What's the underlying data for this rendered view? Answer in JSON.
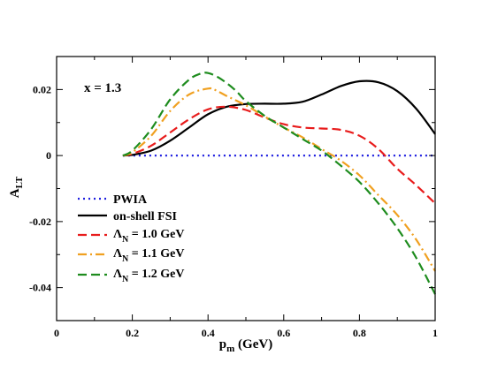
{
  "chart_data": {
    "type": "line",
    "xlabel": "p",
    "xlabel_sub": "m",
    "xlabel_unit": " (GeV)",
    "ylabel": "A",
    "ylabel_sub": "LT",
    "xlim": [
      0,
      1
    ],
    "ylim": [
      -0.05,
      0.03
    ],
    "xticks": [
      0,
      0.2,
      0.4,
      0.6,
      0.8,
      1
    ],
    "xtick_labels": [
      "0",
      "0.2",
      "0.4",
      "0.6",
      "0.8",
      "1"
    ],
    "yticks": [
      -0.04,
      -0.02,
      0,
      0.02
    ],
    "ytick_labels": [
      "-0.04",
      "-0.02",
      "0",
      "0.02"
    ],
    "annotation": "x = 1.3",
    "grid": false,
    "legend_position": "bottom-left",
    "series": [
      {
        "name": "PWIA",
        "label": "PWIA",
        "color": "#1f1fe0",
        "dash": "dotted",
        "x": [
          0.175,
          1.0
        ],
        "y": [
          0.0,
          0.0
        ]
      },
      {
        "name": "on-shell FSI",
        "label": "on-shell FSI",
        "color": "#000000",
        "dash": "solid",
        "x": [
          0.175,
          0.2,
          0.25,
          0.3,
          0.35,
          0.4,
          0.45,
          0.5,
          0.55,
          0.6,
          0.65,
          0.7,
          0.75,
          0.8,
          0.85,
          0.9,
          0.95,
          1.0
        ],
        "y": [
          0.0,
          0.0002,
          0.0015,
          0.0045,
          0.0085,
          0.0125,
          0.0148,
          0.0156,
          0.0157,
          0.0157,
          0.0163,
          0.0185,
          0.021,
          0.0225,
          0.0222,
          0.0195,
          0.0142,
          0.0065
        ]
      },
      {
        "name": "Lambda_N = 1.0 GeV",
        "label_main": "Λ",
        "label_sub": "N",
        "label_rest": " = 1.0 GeV",
        "color": "#e81c1c",
        "dash": "dashed",
        "x": [
          0.175,
          0.2,
          0.25,
          0.3,
          0.35,
          0.4,
          0.45,
          0.5,
          0.55,
          0.6,
          0.65,
          0.7,
          0.75,
          0.8,
          0.85,
          0.9,
          0.95,
          1.0
        ],
        "y": [
          0.0,
          0.0005,
          0.003,
          0.007,
          0.011,
          0.014,
          0.0148,
          0.0138,
          0.0115,
          0.0095,
          0.0085,
          0.0082,
          0.0078,
          0.006,
          0.002,
          -0.004,
          -0.009,
          -0.0145
        ]
      },
      {
        "name": "Lambda_N = 1.1 GeV",
        "label_main": "Λ",
        "label_sub": "N",
        "label_rest": " = 1.1 GeV",
        "color": "#f0a020",
        "dash": "dashdot",
        "x": [
          0.175,
          0.2,
          0.25,
          0.3,
          0.35,
          0.4,
          0.42,
          0.45,
          0.5,
          0.55,
          0.6,
          0.65,
          0.7,
          0.75,
          0.8,
          0.85,
          0.9,
          0.95,
          1.0
        ],
        "y": [
          0.0,
          0.001,
          0.006,
          0.0135,
          0.0185,
          0.0203,
          0.0198,
          0.018,
          0.0152,
          0.0118,
          0.0085,
          0.0055,
          0.002,
          -0.0015,
          -0.006,
          -0.012,
          -0.018,
          -0.0255,
          -0.035
        ]
      },
      {
        "name": "Lambda_N = 1.2 GeV",
        "label_main": "Λ",
        "label_sub": "N",
        "label_rest": " = 1.2 GeV",
        "color": "#1e8c1e",
        "dash": "dashed",
        "x": [
          0.175,
          0.2,
          0.25,
          0.3,
          0.35,
          0.38,
          0.4,
          0.43,
          0.47,
          0.5,
          0.55,
          0.6,
          0.65,
          0.7,
          0.75,
          0.8,
          0.85,
          0.9,
          0.95,
          1.0
        ],
        "y": [
          0.0,
          0.0015,
          0.008,
          0.017,
          0.023,
          0.0248,
          0.025,
          0.0235,
          0.02,
          0.0165,
          0.012,
          0.0085,
          0.005,
          0.0015,
          -0.003,
          -0.008,
          -0.0145,
          -0.022,
          -0.031,
          -0.042
        ]
      }
    ]
  }
}
